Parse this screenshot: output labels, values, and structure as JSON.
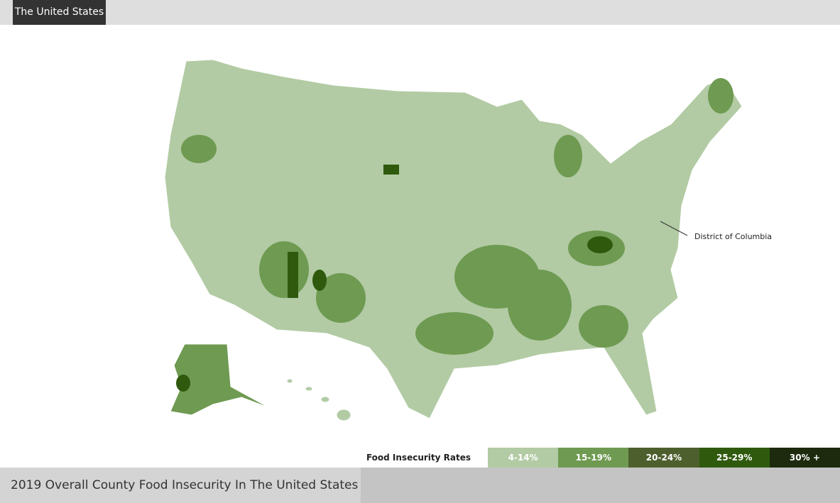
{
  "header": {
    "tab": "The United States"
  },
  "map": {
    "annotation": "District of Columbia"
  },
  "legend": {
    "title": "Food Insecurity Rates",
    "items": [
      {
        "label": "4-14%",
        "color": "#b2cba4"
      },
      {
        "label": "15-19%",
        "color": "#6f9a52"
      },
      {
        "label": "20-24%",
        "color": "#4d5f2d"
      },
      {
        "label": "25-29%",
        "color": "#2f5a0e"
      },
      {
        "label": "30% +",
        "color": "#1d2a0d"
      }
    ]
  },
  "footer": {
    "title": "2019 Overall County Food Insecurity In The United States"
  }
}
